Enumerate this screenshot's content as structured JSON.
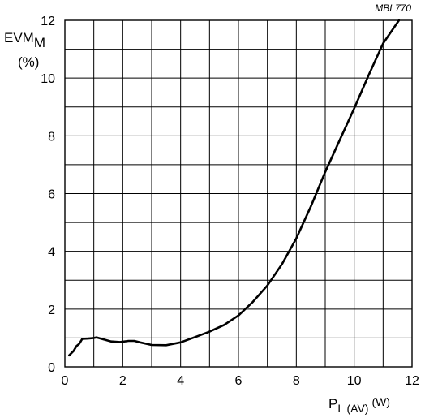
{
  "figure_code": "MBL770",
  "chart_data": {
    "type": "line",
    "title": "",
    "xlabel": {
      "main": "P",
      "subscript": "L (AV)",
      "unit": "(W)"
    },
    "ylabel": {
      "main": "EVM",
      "subscript": "M",
      "unit": "(%)"
    },
    "xlim": [
      0,
      12
    ],
    "ylim": [
      0,
      12
    ],
    "x_ticks": [
      0,
      2,
      4,
      6,
      8,
      10,
      12
    ],
    "x_tick_labels": [
      "0",
      "2",
      "4",
      "6",
      "8",
      "10",
      "12"
    ],
    "y_ticks": [
      0,
      2,
      4,
      6,
      8,
      10,
      12
    ],
    "y_tick_labels": [
      "0",
      "2",
      "4",
      "6",
      "8",
      "10",
      "12"
    ],
    "grid": true,
    "legend": "none",
    "series": [
      {
        "color": "#000000",
        "points": [
          [
            0.15,
            0.4
          ],
          [
            0.3,
            0.55
          ],
          [
            0.4,
            0.72
          ],
          [
            0.5,
            0.8
          ],
          [
            0.6,
            0.97
          ],
          [
            0.8,
            0.98
          ],
          [
            1.0,
            1.0
          ],
          [
            1.1,
            1.02
          ],
          [
            1.3,
            0.96
          ],
          [
            1.6,
            0.88
          ],
          [
            1.9,
            0.86
          ],
          [
            2.2,
            0.9
          ],
          [
            2.4,
            0.9
          ],
          [
            2.6,
            0.85
          ],
          [
            3.0,
            0.76
          ],
          [
            3.5,
            0.75
          ],
          [
            4.0,
            0.85
          ],
          [
            4.5,
            1.03
          ],
          [
            5.0,
            1.22
          ],
          [
            5.5,
            1.45
          ],
          [
            6.0,
            1.78
          ],
          [
            6.5,
            2.25
          ],
          [
            7.0,
            2.82
          ],
          [
            7.5,
            3.55
          ],
          [
            8.0,
            4.45
          ],
          [
            8.5,
            5.55
          ],
          [
            9.0,
            6.75
          ],
          [
            9.5,
            7.85
          ],
          [
            10.0,
            8.95
          ],
          [
            10.5,
            10.1
          ],
          [
            11.0,
            11.2
          ],
          [
            11.55,
            12.0
          ]
        ]
      }
    ]
  }
}
